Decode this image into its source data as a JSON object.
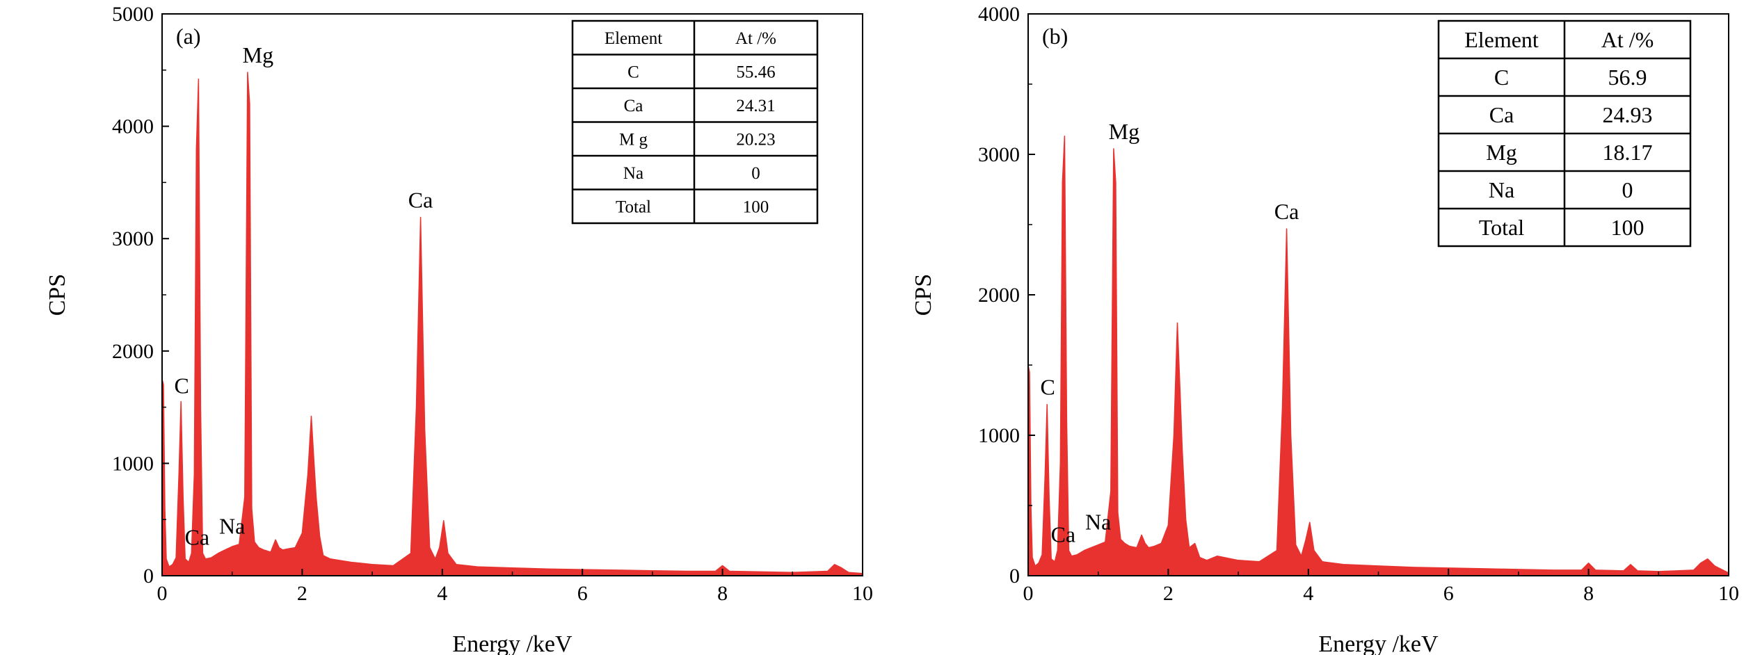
{
  "chart_data": [
    {
      "type": "area",
      "panel_label": "(a)",
      "xlabel": "Energy /keV",
      "ylabel": "CPS",
      "xlim": [
        0,
        10
      ],
      "ylim": [
        0,
        5000
      ],
      "xticks": [
        0,
        2,
        4,
        6,
        8,
        10
      ],
      "yticks": [
        0,
        1000,
        2000,
        3000,
        4000,
        5000
      ],
      "color": "#e8322f",
      "series": [
        {
          "x": [
            0,
            0.02,
            0.04,
            0.06,
            0.1,
            0.15,
            0.2,
            0.24,
            0.27,
            0.3,
            0.33,
            0.38,
            0.42,
            0.46,
            0.49,
            0.52,
            0.55,
            0.58,
            0.62,
            0.7,
            0.8,
            0.9,
            1.0,
            1.1,
            1.18,
            1.22,
            1.25,
            1.28,
            1.32,
            1.38,
            1.45,
            1.55,
            1.62,
            1.67,
            1.72,
            1.8,
            1.9,
            2.0,
            2.08,
            2.13,
            2.17,
            2.2,
            2.25,
            2.3,
            2.4,
            2.5,
            2.7,
            3.0,
            3.3,
            3.55,
            3.63,
            3.69,
            3.75,
            3.82,
            3.9,
            3.96,
            4.02,
            4.08,
            4.2,
            4.5,
            5.0,
            5.5,
            6.0,
            6.5,
            7.0,
            7.5,
            7.9,
            8.0,
            8.1,
            8.5,
            9.0,
            9.5,
            9.6,
            9.7,
            9.8,
            10.0
          ],
          "y": [
            1750,
            1700,
            600,
            150,
            80,
            100,
            160,
            900,
            1550,
            700,
            150,
            120,
            200,
            900,
            3800,
            4420,
            1500,
            200,
            150,
            160,
            200,
            230,
            260,
            280,
            700,
            4480,
            4200,
            600,
            300,
            250,
            230,
            210,
            320,
            250,
            230,
            240,
            250,
            380,
            900,
            1420,
            1000,
            700,
            350,
            180,
            150,
            140,
            120,
            100,
            90,
            200,
            1500,
            3190,
            1300,
            250,
            150,
            250,
            490,
            200,
            100,
            80,
            70,
            60,
            55,
            50,
            45,
            40,
            40,
            90,
            40,
            35,
            30,
            40,
            100,
            70,
            30,
            20
          ]
        }
      ],
      "annotations": [
        {
          "text": "C",
          "x": 0.28,
          "y": 1550
        },
        {
          "text": "Ca",
          "x": 0.5,
          "y": 200
        },
        {
          "text": "Na",
          "x": 1.0,
          "y": 300
        },
        {
          "text": "Mg",
          "x": 1.27,
          "y": 4480
        },
        {
          "text": "Ca",
          "x": 3.69,
          "y": 3190
        }
      ],
      "table": {
        "headers": [
          "Element",
          "At /%"
        ],
        "rows": [
          [
            "C",
            "55.46"
          ],
          [
            "Ca",
            "24.31"
          ],
          [
            "M g",
            "20.23"
          ],
          [
            "Na",
            "0"
          ],
          [
            "Total",
            "100"
          ]
        ]
      }
    },
    {
      "type": "area",
      "panel_label": "(b)",
      "xlabel": "Energy /keV",
      "ylabel": "CPS",
      "xlim": [
        0,
        10
      ],
      "ylim": [
        0,
        4000
      ],
      "xticks": [
        0,
        2,
        4,
        6,
        8,
        10
      ],
      "yticks": [
        0,
        1000,
        2000,
        3000,
        4000
      ],
      "color": "#e8322f",
      "series": [
        {
          "x": [
            0,
            0.02,
            0.04,
            0.06,
            0.1,
            0.15,
            0.2,
            0.24,
            0.27,
            0.3,
            0.33,
            0.38,
            0.42,
            0.46,
            0.49,
            0.52,
            0.55,
            0.58,
            0.62,
            0.7,
            0.8,
            0.9,
            1.0,
            1.1,
            1.18,
            1.22,
            1.25,
            1.28,
            1.32,
            1.38,
            1.45,
            1.55,
            1.62,
            1.67,
            1.72,
            1.8,
            1.9,
            2.0,
            2.08,
            2.13,
            2.17,
            2.2,
            2.25,
            2.3,
            2.38,
            2.45,
            2.55,
            2.7,
            3.0,
            3.3,
            3.55,
            3.63,
            3.69,
            3.75,
            3.82,
            3.9,
            3.96,
            4.02,
            4.08,
            4.2,
            4.5,
            5.0,
            5.5,
            6.0,
            6.5,
            7.0,
            7.5,
            7.9,
            8.0,
            8.1,
            8.5,
            8.6,
            8.7,
            9.0,
            9.5,
            9.6,
            9.7,
            9.8,
            10.0
          ],
          "y": [
            1500,
            1450,
            500,
            130,
            70,
            90,
            150,
            700,
            1220,
            550,
            120,
            100,
            180,
            800,
            2800,
            3130,
            1100,
            180,
            140,
            150,
            180,
            200,
            220,
            240,
            600,
            3040,
            2800,
            450,
            260,
            230,
            210,
            200,
            290,
            230,
            200,
            210,
            230,
            360,
            1000,
            1800,
            1300,
            900,
            400,
            200,
            230,
            130,
            110,
            140,
            110,
            100,
            180,
            1200,
            2470,
            1000,
            220,
            140,
            250,
            380,
            180,
            100,
            80,
            70,
            60,
            55,
            50,
            45,
            40,
            40,
            90,
            40,
            35,
            80,
            35,
            30,
            40,
            90,
            120,
            70,
            20
          ]
        }
      ],
      "annotations": [
        {
          "text": "C",
          "x": 0.28,
          "y": 1230
        },
        {
          "text": "Ca",
          "x": 0.5,
          "y": 180
        },
        {
          "text": "Na",
          "x": 1.0,
          "y": 270
        },
        {
          "text": "Mg",
          "x": 1.27,
          "y": 3040
        },
        {
          "text": "Ca",
          "x": 3.69,
          "y": 2470
        }
      ],
      "table": {
        "headers": [
          "Element",
          "At /%"
        ],
        "rows": [
          [
            "C",
            "56.9"
          ],
          [
            "Ca",
            "24.93"
          ],
          [
            "Mg",
            "18.17"
          ],
          [
            "Na",
            "0"
          ],
          [
            "Total",
            "100"
          ]
        ]
      }
    }
  ]
}
